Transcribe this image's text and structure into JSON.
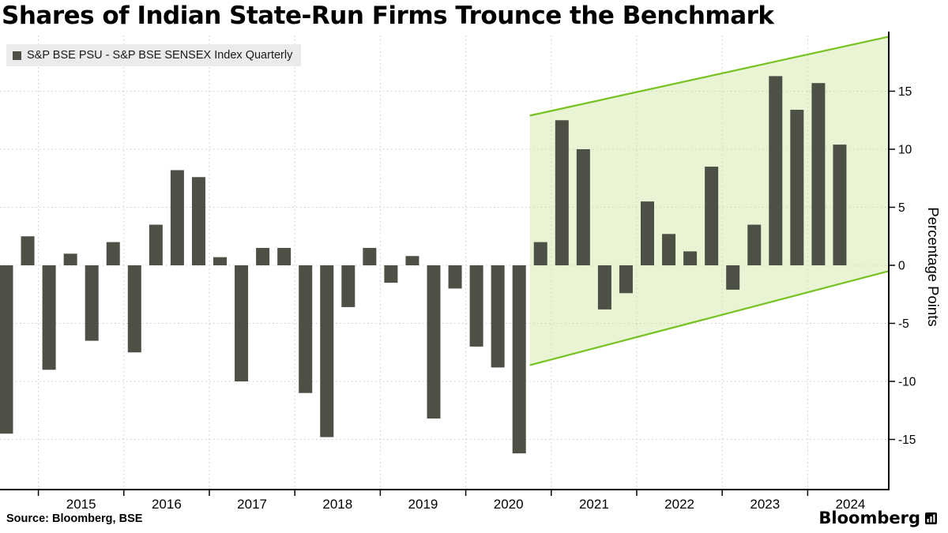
{
  "title": "Shares of Indian State-Run Firms Trounce the Benchmark",
  "legend": {
    "label": "S&P BSE PSU - S&P BSE SENSEX Index Quarterly"
  },
  "source": "Source: Bloomberg, BSE",
  "logo_text": "Bloomberg",
  "colors": {
    "bar": "#4d5044",
    "grid": "#c9c9c9",
    "axis": "#000000",
    "highlight_line": "#76c221",
    "highlight_fill": "#cfe79f",
    "legend_bg": "#ebebeb"
  },
  "chart_data": {
    "type": "bar",
    "title": "Shares of Indian State-Run Firms Trounce the Benchmark",
    "series_name": "S&P BSE PSU - S&P BSE SENSEX Index Quarterly",
    "ylabel": "Percentage Points",
    "ylim": [
      -19.3,
      19.8
    ],
    "yticks": [
      -15,
      -10,
      -5,
      0,
      5,
      10,
      15
    ],
    "grid": true,
    "legend_position": "top-left",
    "x_tick_labels": [
      "2015",
      "2016",
      "2017",
      "2018",
      "2019",
      "2020",
      "2021",
      "2022",
      "2023",
      "2024"
    ],
    "labels": [
      "2014 Q3",
      "2014 Q4",
      "2015 Q1",
      "2015 Q2",
      "2015 Q3",
      "2015 Q4",
      "2016 Q1",
      "2016 Q2",
      "2016 Q3",
      "2016 Q4",
      "2017 Q1",
      "2017 Q2",
      "2017 Q3",
      "2017 Q4",
      "2018 Q1",
      "2018 Q2",
      "2018 Q3",
      "2018 Q4",
      "2019 Q1",
      "2019 Q2",
      "2019 Q3",
      "2019 Q4",
      "2020 Q1",
      "2020 Q2",
      "2020 Q3",
      "2020 Q4",
      "2021 Q1",
      "2021 Q2",
      "2021 Q3",
      "2021 Q4",
      "2022 Q1",
      "2022 Q2",
      "2022 Q3",
      "2022 Q4",
      "2023 Q1",
      "2023 Q2",
      "2023 Q3",
      "2023 Q4",
      "2024 Q1",
      "2024 Q2"
    ],
    "values": [
      -14.5,
      2.5,
      -9,
      1,
      -6.5,
      2,
      -7.5,
      3.5,
      8.2,
      7.6,
      0.7,
      -10,
      1.5,
      1.5,
      -11,
      -14.8,
      -3.6,
      1.5,
      -1.5,
      0.8,
      -13.2,
      -2,
      -7,
      -8.8,
      -16.2,
      2,
      12.5,
      10,
      -3.8,
      -2.4,
      5.5,
      2.7,
      1.2,
      8.5,
      -2.1,
      3.5,
      16.3,
      13.4,
      15.7,
      10.4
    ],
    "highlight": {
      "start_index": 25,
      "top_start": 12.9,
      "top_end": 19.7,
      "bottom_start": -8.6,
      "bottom_end": -0.5
    }
  }
}
